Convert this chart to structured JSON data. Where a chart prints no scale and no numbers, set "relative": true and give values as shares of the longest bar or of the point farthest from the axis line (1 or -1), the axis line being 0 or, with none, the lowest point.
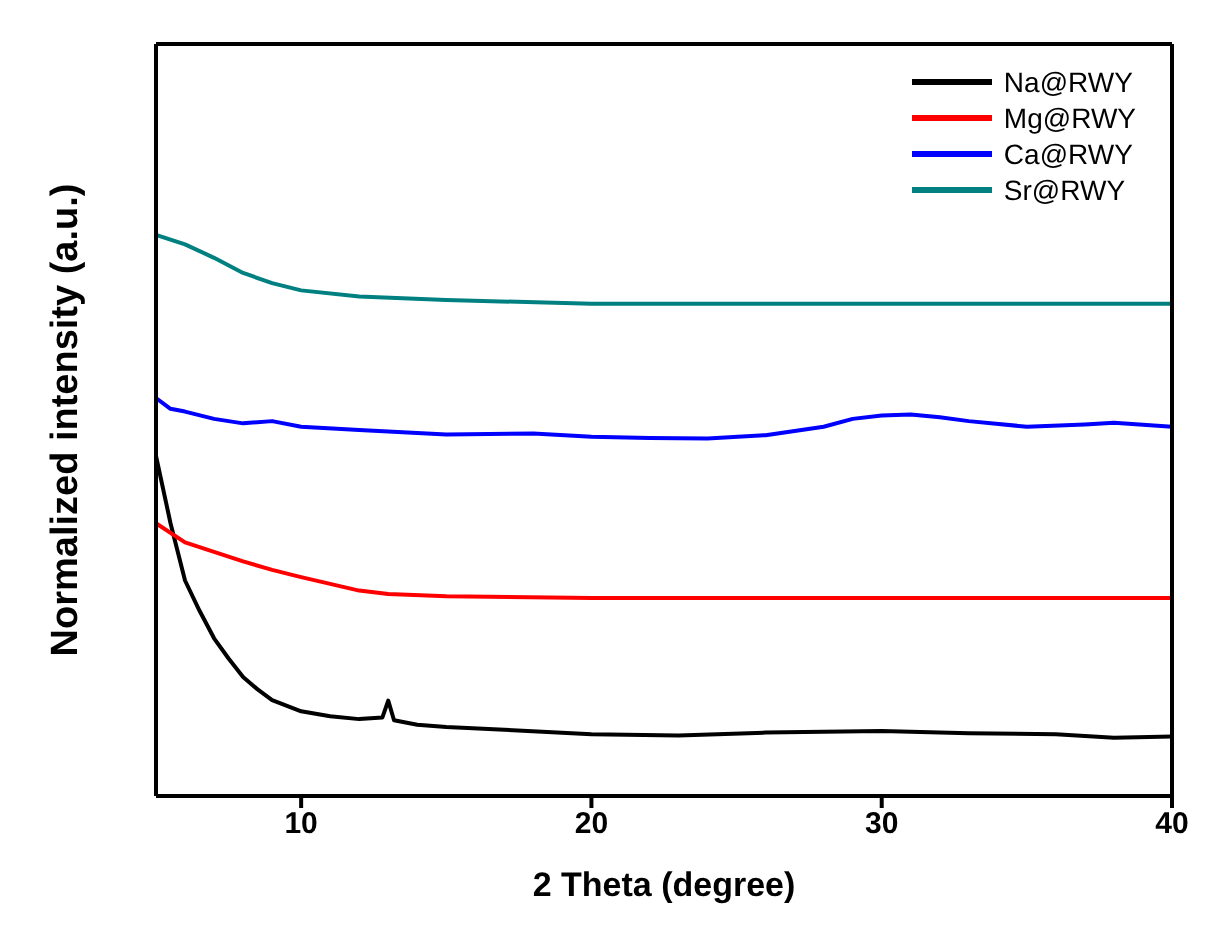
{
  "chart_data": {
    "type": "line",
    "xlabel": "2 Theta (degree)",
    "ylabel": "Normalized intensity (a.u.)",
    "relative": true,
    "xlim": [
      5,
      40
    ],
    "xticks": [
      10,
      20,
      30,
      40
    ],
    "legend": "top right",
    "grid": false,
    "marker": "none",
    "line_style": "solid",
    "series": [
      {
        "name": "Na@RWY",
        "color": "#000000",
        "x": [
          5,
          5.5,
          6,
          6.5,
          7,
          7.5,
          8,
          8.5,
          9,
          10,
          11,
          12,
          12.8,
          13,
          13.2,
          14,
          15,
          17,
          20,
          23,
          26,
          30,
          33,
          36,
          38,
          40
        ],
        "values": [
          0.606,
          0.486,
          0.384,
          0.33,
          0.281,
          0.245,
          0.212,
          0.19,
          0.171,
          0.151,
          0.142,
          0.137,
          0.14,
          0.17,
          0.135,
          0.127,
          0.123,
          0.118,
          0.11,
          0.108,
          0.113,
          0.116,
          0.112,
          0.11,
          0.104,
          0.106
        ]
      },
      {
        "name": "Mg@RWY",
        "color": "#ff0000",
        "x": [
          5,
          6,
          7,
          8,
          9,
          10,
          11,
          12,
          13,
          15,
          20,
          25,
          30,
          35,
          40
        ],
        "values": [
          0.486,
          0.452,
          0.435,
          0.418,
          0.403,
          0.39,
          0.378,
          0.366,
          0.36,
          0.356,
          0.353,
          0.353,
          0.353,
          0.353,
          0.353
        ]
      },
      {
        "name": "Ca@RWY",
        "color": "#0000ff",
        "x": [
          5,
          5.5,
          6,
          7,
          8,
          9,
          10,
          12,
          15,
          18,
          20,
          22,
          24,
          26,
          28,
          29,
          30,
          31,
          32,
          33,
          35,
          37,
          38,
          40
        ],
        "values": [
          0.709,
          0.69,
          0.685,
          0.672,
          0.664,
          0.668,
          0.658,
          0.652,
          0.644,
          0.646,
          0.64,
          0.638,
          0.637,
          0.643,
          0.658,
          0.672,
          0.678,
          0.68,
          0.675,
          0.668,
          0.658,
          0.662,
          0.665,
          0.658
        ]
      },
      {
        "name": "Sr@RWY",
        "color": "#008080",
        "x": [
          5,
          6,
          7,
          8,
          9,
          10,
          12,
          15,
          20,
          25,
          30,
          35,
          40
        ],
        "values": [
          1.0,
          0.983,
          0.959,
          0.932,
          0.914,
          0.901,
          0.89,
          0.884,
          0.877,
          0.877,
          0.877,
          0.877,
          0.877
        ]
      }
    ]
  }
}
